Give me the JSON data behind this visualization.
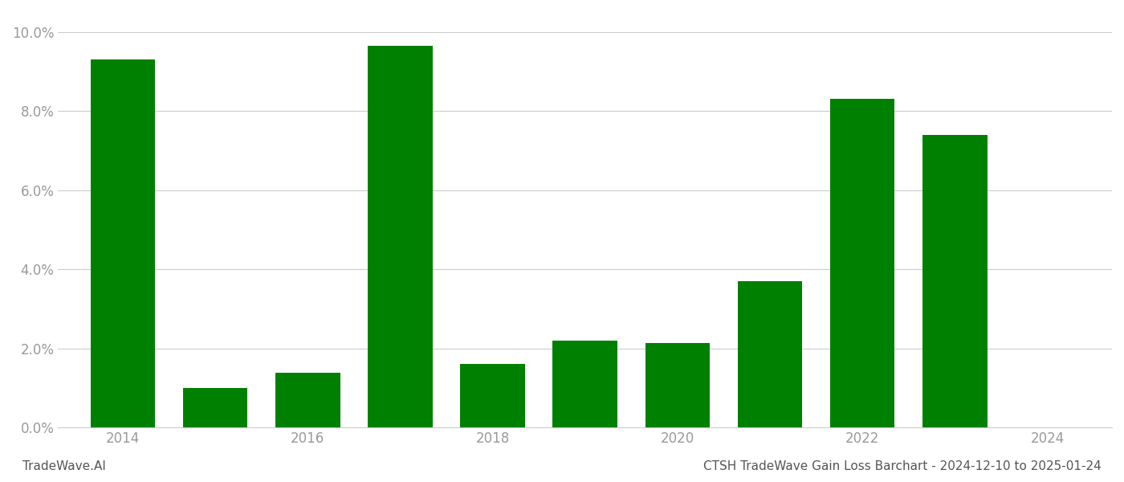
{
  "years": [
    2014,
    2015,
    2016,
    2017,
    2018,
    2019,
    2020,
    2021,
    2022,
    2023
  ],
  "values": [
    0.093,
    0.01,
    0.0138,
    0.0965,
    0.016,
    0.022,
    0.0213,
    0.037,
    0.083,
    0.074
  ],
  "bar_color": "#008000",
  "title": "CTSH TradeWave Gain Loss Barchart - 2024-12-10 to 2025-01-24",
  "watermark": "TradeWave.AI",
  "ylim": [
    0,
    0.105
  ],
  "yticks": [
    0.0,
    0.02,
    0.04,
    0.06,
    0.08,
    0.1
  ],
  "xlim": [
    2013.3,
    2024.7
  ],
  "xticks": [
    2014,
    2016,
    2018,
    2020,
    2022,
    2024
  ],
  "xtick_labels": [
    "2014",
    "2016",
    "2018",
    "2020",
    "2022",
    "2024"
  ],
  "background_color": "#ffffff",
  "grid_color": "#cccccc",
  "bar_width": 0.7,
  "title_fontsize": 11,
  "watermark_fontsize": 11,
  "tick_label_color": "#999999",
  "title_color": "#555555"
}
